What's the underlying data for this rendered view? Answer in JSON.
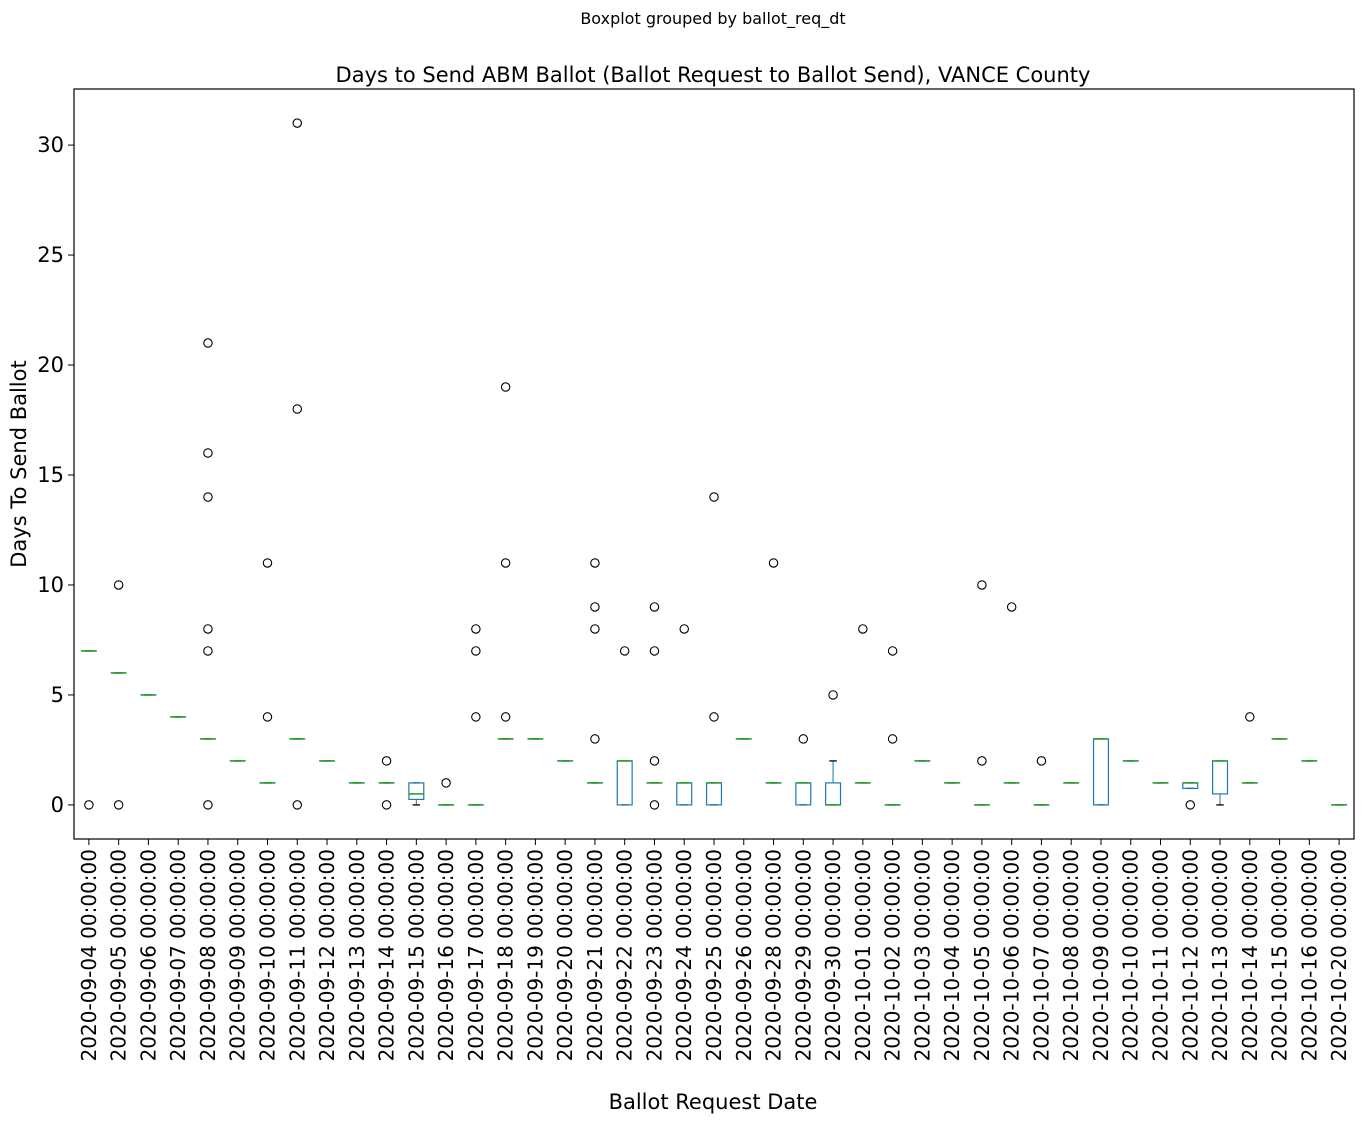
{
  "chart_data": {
    "type": "boxplot",
    "suptitle": "Boxplot grouped by ballot_req_dt",
    "title": "Days to Send ABM Ballot (Ballot Request to Ballot Send), VANCE County",
    "xlabel": "Ballot Request Date",
    "ylabel": "Days To Send Ballot",
    "ylim": [
      -1.55,
      32.55
    ],
    "yticks": [
      0,
      5,
      10,
      15,
      20,
      25,
      30
    ],
    "grid": false,
    "colors": {
      "box": "#1f77b4",
      "median": "#2ca02c",
      "whisker": "#1f77b4",
      "flier": "#000000"
    },
    "categories": [
      "2020-09-04 00:00:00",
      "2020-09-05 00:00:00",
      "2020-09-06 00:00:00",
      "2020-09-07 00:00:00",
      "2020-09-08 00:00:00",
      "2020-09-09 00:00:00",
      "2020-09-10 00:00:00",
      "2020-09-11 00:00:00",
      "2020-09-12 00:00:00",
      "2020-09-13 00:00:00",
      "2020-09-14 00:00:00",
      "2020-09-15 00:00:00",
      "2020-09-16 00:00:00",
      "2020-09-17 00:00:00",
      "2020-09-18 00:00:00",
      "2020-09-19 00:00:00",
      "2020-09-20 00:00:00",
      "2020-09-21 00:00:00",
      "2020-09-22 00:00:00",
      "2020-09-23 00:00:00",
      "2020-09-24 00:00:00",
      "2020-09-25 00:00:00",
      "2020-09-26 00:00:00",
      "2020-09-28 00:00:00",
      "2020-09-29 00:00:00",
      "2020-09-30 00:00:00",
      "2020-10-01 00:00:00",
      "2020-10-02 00:00:00",
      "2020-10-03 00:00:00",
      "2020-10-04 00:00:00",
      "2020-10-05 00:00:00",
      "2020-10-06 00:00:00",
      "2020-10-07 00:00:00",
      "2020-10-08 00:00:00",
      "2020-10-09 00:00:00",
      "2020-10-10 00:00:00",
      "2020-10-11 00:00:00",
      "2020-10-12 00:00:00",
      "2020-10-13 00:00:00",
      "2020-10-14 00:00:00",
      "2020-10-15 00:00:00",
      "2020-10-16 00:00:00",
      "2020-10-20 00:00:00"
    ],
    "boxes": [
      {
        "q1": 7,
        "med": 7,
        "q3": 7,
        "wlo": 7,
        "whi": 7,
        "fliers": [
          0
        ]
      },
      {
        "q1": 6,
        "med": 6,
        "q3": 6,
        "wlo": 6,
        "whi": 6,
        "fliers": [
          10,
          0
        ]
      },
      {
        "q1": 5,
        "med": 5,
        "q3": 5,
        "wlo": 5,
        "whi": 5,
        "fliers": []
      },
      {
        "q1": 4,
        "med": 4,
        "q3": 4,
        "wlo": 4,
        "whi": 4,
        "fliers": []
      },
      {
        "q1": 3,
        "med": 3,
        "q3": 3,
        "wlo": 3,
        "whi": 3,
        "fliers": [
          21,
          16,
          14,
          8,
          7,
          0
        ]
      },
      {
        "q1": 2,
        "med": 2,
        "q3": 2,
        "wlo": 2,
        "whi": 2,
        "fliers": []
      },
      {
        "q1": 1,
        "med": 1,
        "q3": 1,
        "wlo": 1,
        "whi": 1,
        "fliers": [
          11,
          4
        ]
      },
      {
        "q1": 3,
        "med": 3,
        "q3": 3,
        "wlo": 3,
        "whi": 3,
        "fliers": [
          31,
          18,
          0
        ]
      },
      {
        "q1": 2,
        "med": 2,
        "q3": 2,
        "wlo": 2,
        "whi": 2,
        "fliers": []
      },
      {
        "q1": 1,
        "med": 1,
        "q3": 1,
        "wlo": 1,
        "whi": 1,
        "fliers": []
      },
      {
        "q1": 1,
        "med": 1,
        "q3": 1,
        "wlo": 1,
        "whi": 1,
        "fliers": [
          2,
          0
        ]
      },
      {
        "q1": 0.25,
        "med": 0.5,
        "q3": 1,
        "wlo": 0,
        "whi": 1,
        "fliers": []
      },
      {
        "q1": 0,
        "med": 0,
        "q3": 0,
        "wlo": 0,
        "whi": 0,
        "fliers": [
          1
        ]
      },
      {
        "q1": 0,
        "med": 0,
        "q3": 0,
        "wlo": 0,
        "whi": 0,
        "fliers": [
          8,
          7,
          4
        ]
      },
      {
        "q1": 3,
        "med": 3,
        "q3": 3,
        "wlo": 3,
        "whi": 3,
        "fliers": [
          19,
          11,
          4
        ]
      },
      {
        "q1": 3,
        "med": 3,
        "q3": 3,
        "wlo": 3,
        "whi": 3,
        "fliers": []
      },
      {
        "q1": 2,
        "med": 2,
        "q3": 2,
        "wlo": 2,
        "whi": 2,
        "fliers": []
      },
      {
        "q1": 1,
        "med": 1,
        "q3": 1,
        "wlo": 1,
        "whi": 1,
        "fliers": [
          11,
          9,
          8,
          3
        ]
      },
      {
        "q1": 0,
        "med": 2,
        "q3": 2,
        "wlo": 0,
        "whi": 2,
        "fliers": [
          7
        ]
      },
      {
        "q1": 1,
        "med": 1,
        "q3": 1,
        "wlo": 1,
        "whi": 1,
        "fliers": [
          9,
          7,
          2,
          0
        ]
      },
      {
        "q1": 0,
        "med": 1,
        "q3": 1,
        "wlo": 0,
        "whi": 1,
        "fliers": [
          8
        ]
      },
      {
        "q1": 0,
        "med": 1,
        "q3": 1,
        "wlo": 0,
        "whi": 1,
        "fliers": [
          14,
          4
        ]
      },
      {
        "q1": 3,
        "med": 3,
        "q3": 3,
        "wlo": 3,
        "whi": 3,
        "fliers": []
      },
      {
        "q1": 1,
        "med": 1,
        "q3": 1,
        "wlo": 1,
        "whi": 1,
        "fliers": [
          11
        ]
      },
      {
        "q1": 0,
        "med": 1,
        "q3": 1,
        "wlo": 0,
        "whi": 1,
        "fliers": [
          3
        ]
      },
      {
        "q1": 0,
        "med": 0,
        "q3": 1,
        "wlo": 0,
        "whi": 2,
        "fliers": [
          5
        ]
      },
      {
        "q1": 1,
        "med": 1,
        "q3": 1,
        "wlo": 1,
        "whi": 1,
        "fliers": [
          8
        ]
      },
      {
        "q1": 0,
        "med": 0,
        "q3": 0,
        "wlo": 0,
        "whi": 0,
        "fliers": [
          7,
          3
        ]
      },
      {
        "q1": 2,
        "med": 2,
        "q3": 2,
        "wlo": 2,
        "whi": 2,
        "fliers": []
      },
      {
        "q1": 1,
        "med": 1,
        "q3": 1,
        "wlo": 1,
        "whi": 1,
        "fliers": []
      },
      {
        "q1": 0,
        "med": 0,
        "q3": 0,
        "wlo": 0,
        "whi": 0,
        "fliers": [
          10,
          2
        ]
      },
      {
        "q1": 1,
        "med": 1,
        "q3": 1,
        "wlo": 1,
        "whi": 1,
        "fliers": [
          9
        ]
      },
      {
        "q1": 0,
        "med": 0,
        "q3": 0,
        "wlo": 0,
        "whi": 0,
        "fliers": [
          2
        ]
      },
      {
        "q1": 1,
        "med": 1,
        "q3": 1,
        "wlo": 1,
        "whi": 1,
        "fliers": []
      },
      {
        "q1": 0,
        "med": 3,
        "q3": 3,
        "wlo": 0,
        "whi": 3,
        "fliers": []
      },
      {
        "q1": 2,
        "med": 2,
        "q3": 2,
        "wlo": 2,
        "whi": 2,
        "fliers": []
      },
      {
        "q1": 1,
        "med": 1,
        "q3": 1,
        "wlo": 1,
        "whi": 1,
        "fliers": []
      },
      {
        "q1": 0.75,
        "med": 1,
        "q3": 1,
        "wlo": 0.75,
        "whi": 1,
        "fliers": [
          0
        ]
      },
      {
        "q1": 0.5,
        "med": 2,
        "q3": 2,
        "wlo": 0,
        "whi": 2,
        "fliers": []
      },
      {
        "q1": 1,
        "med": 1,
        "q3": 1,
        "wlo": 1,
        "whi": 1,
        "fliers": [
          4
        ]
      },
      {
        "q1": 3,
        "med": 3,
        "q3": 3,
        "wlo": 3,
        "whi": 3,
        "fliers": []
      },
      {
        "q1": 2,
        "med": 2,
        "q3": 2,
        "wlo": 2,
        "whi": 2,
        "fliers": []
      },
      {
        "q1": 0,
        "med": 0,
        "q3": 0,
        "wlo": 0,
        "whi": 0,
        "fliers": []
      }
    ]
  }
}
